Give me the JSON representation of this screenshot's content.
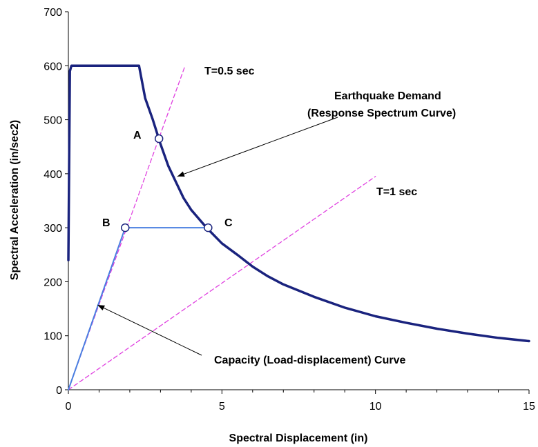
{
  "chart_data": {
    "type": "line",
    "title": "",
    "xlabel": "Spectral Displacement (in)",
    "ylabel": "Spectral Acceleration (in/sec2)",
    "xlim": [
      0,
      15
    ],
    "ylim": [
      0,
      700
    ],
    "xticks": [
      0,
      5,
      10,
      15
    ],
    "yticks": [
      0,
      100,
      200,
      300,
      400,
      500,
      600,
      700
    ],
    "grid": false,
    "legend": "none",
    "series": [
      {
        "key": "demand",
        "color": "#1a237e",
        "style": "solid",
        "x": [
          0.0,
          0.05,
          0.1,
          2.3,
          2.5,
          2.75,
          3.0,
          3.25,
          3.5,
          3.75,
          4.0,
          4.5,
          5.0,
          5.5,
          6.0,
          6.5,
          7.0,
          8.0,
          9.0,
          10.0,
          11.0,
          12.0,
          13.0,
          14.0,
          15.0
        ],
        "y": [
          240,
          590,
          600,
          600,
          540,
          500,
          455,
          415,
          385,
          355,
          333,
          300,
          271,
          250,
          228,
          210,
          195,
          172,
          152,
          136,
          124,
          113,
          104,
          96,
          90
        ]
      },
      {
        "key": "capacity",
        "color": "#4a7fe0",
        "style": "solid",
        "x": [
          0.0,
          1.85,
          4.55
        ],
        "y": [
          0,
          300,
          300
        ]
      },
      {
        "key": "t05",
        "color": "#e040e0",
        "style": "dashed",
        "x": [
          0.0,
          3.8
        ],
        "y": [
          0,
          600
        ]
      },
      {
        "key": "t1",
        "color": "#e040e0",
        "style": "dashed",
        "x": [
          0.0,
          10.0
        ],
        "y": [
          0,
          395
        ]
      }
    ],
    "points": [
      {
        "key": "A",
        "x": 2.95,
        "y": 465
      },
      {
        "key": "B",
        "x": 1.85,
        "y": 300
      },
      {
        "key": "C",
        "x": 4.55,
        "y": 300
      }
    ],
    "annotations": {
      "t05_label": "T=0.5 sec",
      "t1_label": "T=1 sec",
      "demand_line1": "Earthquake Demand",
      "demand_line2": "(Response Spectrum Curve)",
      "capacity_label": "Capacity (Load-displacement) Curve",
      "point_a": "A",
      "point_b": "B",
      "point_c": "C"
    }
  }
}
